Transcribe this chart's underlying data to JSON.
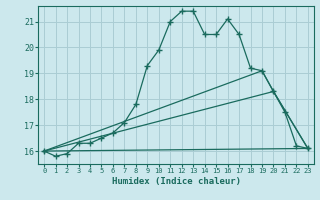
{
  "xlabel": "Humidex (Indice chaleur)",
  "bg_color": "#cce8ed",
  "grid_color": "#aacdd4",
  "line_color": "#1a6b5e",
  "xlim": [
    -0.5,
    23.5
  ],
  "ylim": [
    15.5,
    21.6
  ],
  "yticks": [
    16,
    17,
    18,
    19,
    20,
    21
  ],
  "xticks": [
    0,
    1,
    2,
    3,
    4,
    5,
    6,
    7,
    8,
    9,
    10,
    11,
    12,
    13,
    14,
    15,
    16,
    17,
    18,
    19,
    20,
    21,
    22,
    23
  ],
  "line1_x": [
    0,
    1,
    2,
    3,
    4,
    5,
    6,
    7,
    8,
    9,
    10,
    11,
    12,
    13,
    14,
    15,
    16,
    17,
    18,
    19,
    20,
    21,
    22,
    23
  ],
  "line1_y": [
    16.0,
    15.8,
    15.9,
    16.3,
    16.3,
    16.5,
    16.7,
    17.1,
    17.8,
    19.3,
    19.9,
    21.0,
    21.4,
    21.4,
    20.5,
    20.5,
    21.1,
    20.5,
    19.2,
    19.1,
    18.3,
    17.5,
    16.2,
    16.1
  ],
  "line2_x": [
    0,
    19,
    20,
    23
  ],
  "line2_y": [
    16.0,
    19.1,
    18.3,
    16.1
  ],
  "line3_x": [
    0,
    20,
    23
  ],
  "line3_y": [
    16.0,
    18.3,
    16.1
  ],
  "line4_x": [
    0,
    23
  ],
  "line4_y": [
    16.0,
    16.1
  ]
}
